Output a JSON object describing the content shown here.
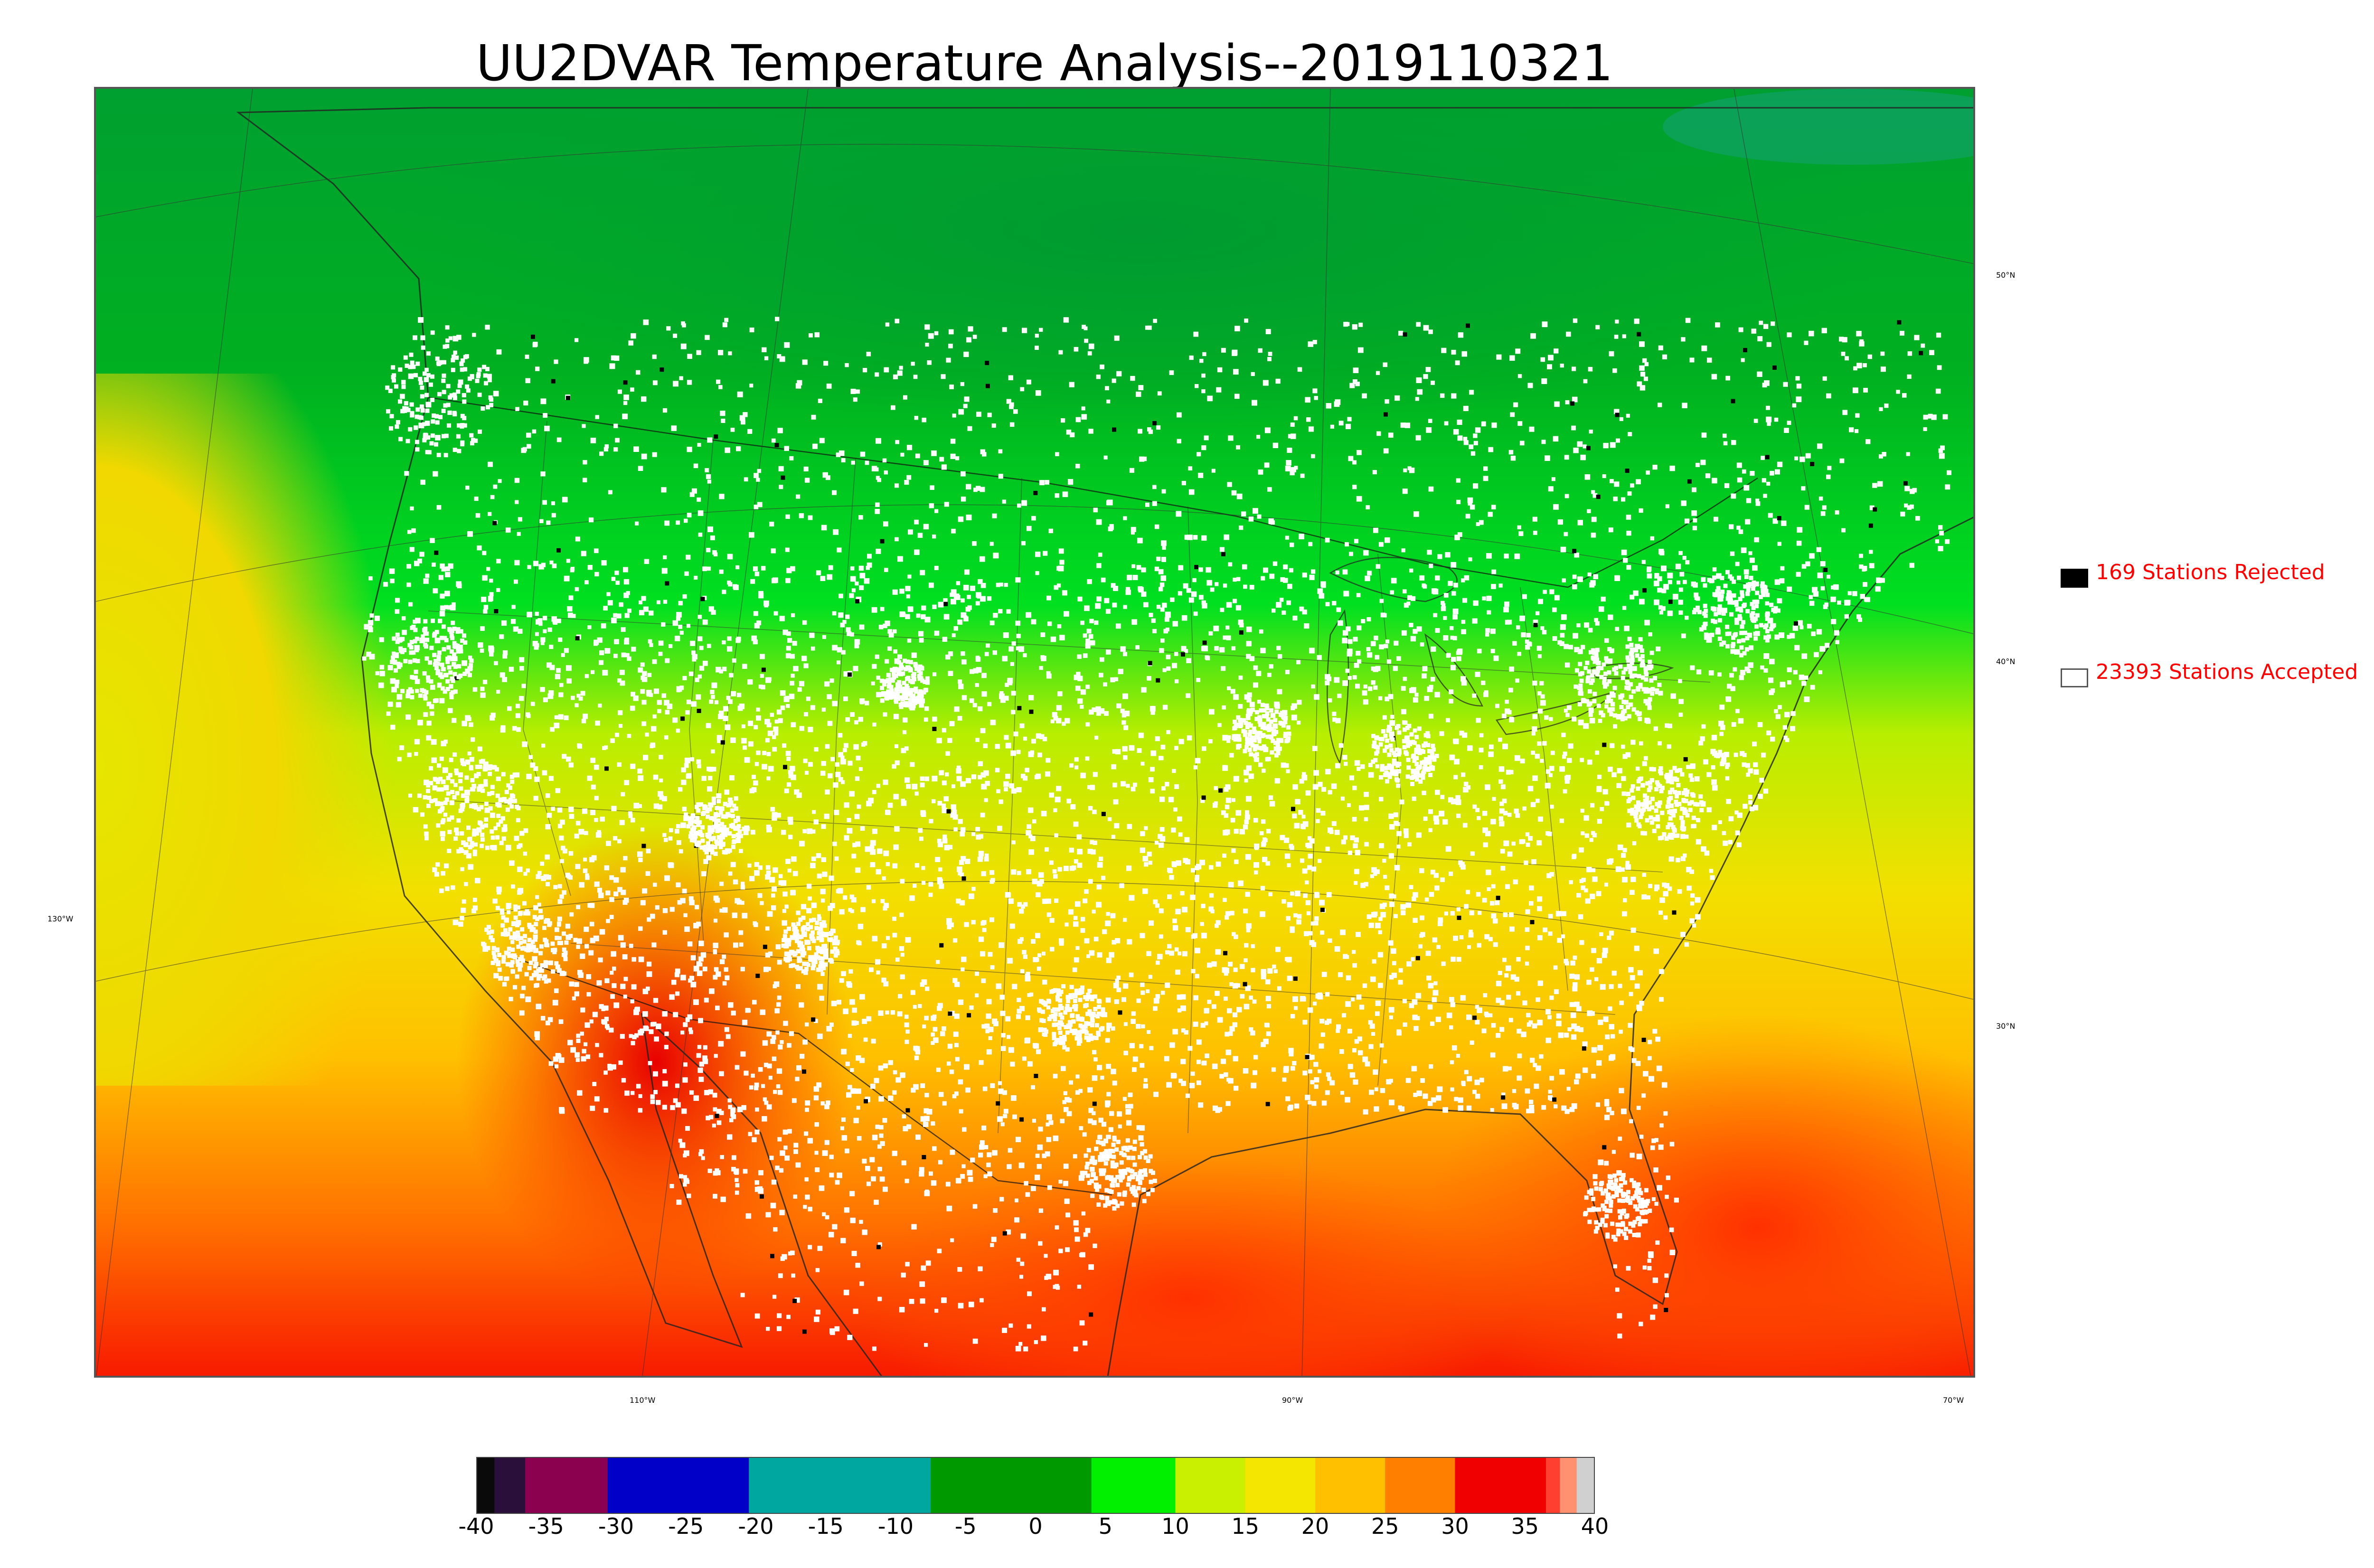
{
  "title": "UU2DVAR Temperature Analysis--2019110321",
  "legend": {
    "rejected_label": "169 Stations Rejected",
    "accepted_label": "23393 Stations Accepted",
    "rejected_color": "#000000",
    "accepted_color": "#ffffff",
    "text_color": "#ff0000"
  },
  "lat_labels": [
    "50°N",
    "40°N",
    "30°N"
  ],
  "lon_labels": [
    "130°W",
    "110°W",
    "90°W",
    "70°W"
  ],
  "colorbar": {
    "ticks": [
      "-40",
      "-35",
      "-30",
      "-25",
      "-20",
      "-15",
      "-10",
      "-5",
      "0",
      "5",
      "10",
      "15",
      "20",
      "25",
      "30",
      "35",
      "40"
    ],
    "range": [
      -40,
      40
    ],
    "segments": [
      {
        "from": -40,
        "to": -38.7,
        "color": "#0a0a0a"
      },
      {
        "from": -38.7,
        "to": -36.5,
        "color": "#2a0f3a"
      },
      {
        "from": -36.5,
        "to": -30.6,
        "color": "#8c0050"
      },
      {
        "from": -30.6,
        "to": -20.5,
        "color": "#0000c8"
      },
      {
        "from": -20.5,
        "to": -7.5,
        "color": "#00a6a0"
      },
      {
        "from": -7.5,
        "to": 4,
        "color": "#009a00"
      },
      {
        "from": 4,
        "to": 10,
        "color": "#00f000"
      },
      {
        "from": 10,
        "to": 15,
        "color": "#c8f000"
      },
      {
        "from": 15,
        "to": 20,
        "color": "#f5e600"
      },
      {
        "from": 20,
        "to": 25,
        "color": "#ffc000"
      },
      {
        "from": 25,
        "to": 30,
        "color": "#ff8000"
      },
      {
        "from": 30,
        "to": 36.5,
        "color": "#f00000"
      },
      {
        "from": 36.5,
        "to": 37.5,
        "color": "#ff4030"
      },
      {
        "from": 37.5,
        "to": 38.7,
        "color": "#ff9070"
      },
      {
        "from": 38.7,
        "to": 40,
        "color": "#d0d0d0"
      }
    ]
  },
  "chart_data": {
    "type": "heatmap",
    "title": "UU2DVAR Temperature Analysis--2019110321",
    "colorbar_range": [
      -40,
      40
    ],
    "colorbar_ticks": [
      -40,
      -35,
      -30,
      -25,
      -20,
      -15,
      -10,
      -5,
      0,
      5,
      10,
      15,
      20,
      25,
      30,
      35,
      40
    ],
    "stations_rejected": 169,
    "stations_accepted": 23393,
    "lat_gridlines": [
      "50°N",
      "40°N",
      "30°N"
    ],
    "lon_gridlines": [
      "130°W",
      "110°W",
      "90°W",
      "70°W"
    ]
  }
}
